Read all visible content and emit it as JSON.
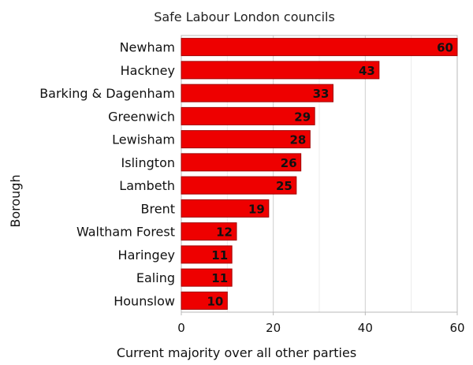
{
  "chart_data": {
    "type": "bar",
    "orientation": "horizontal",
    "title": "Safe Labour London councils",
    "xlabel": "Current majority over all other parties",
    "ylabel": "Borough",
    "categories": [
      "Newham",
      "Hackney",
      "Barking & Dagenham",
      "Greenwich",
      "Lewisham",
      "Islington",
      "Lambeth",
      "Brent",
      "Waltham Forest",
      "Haringey",
      "Ealing",
      "Hounslow"
    ],
    "values": [
      60,
      43,
      33,
      29,
      28,
      26,
      25,
      19,
      12,
      11,
      11,
      10
    ],
    "xlim": [
      0,
      60
    ],
    "xticks": [
      0,
      20,
      40,
      60
    ],
    "grid": "vertical",
    "legend": "none",
    "data_labels": true,
    "bar_color": "#ee0000",
    "bar_edge_color": "#a00000"
  }
}
